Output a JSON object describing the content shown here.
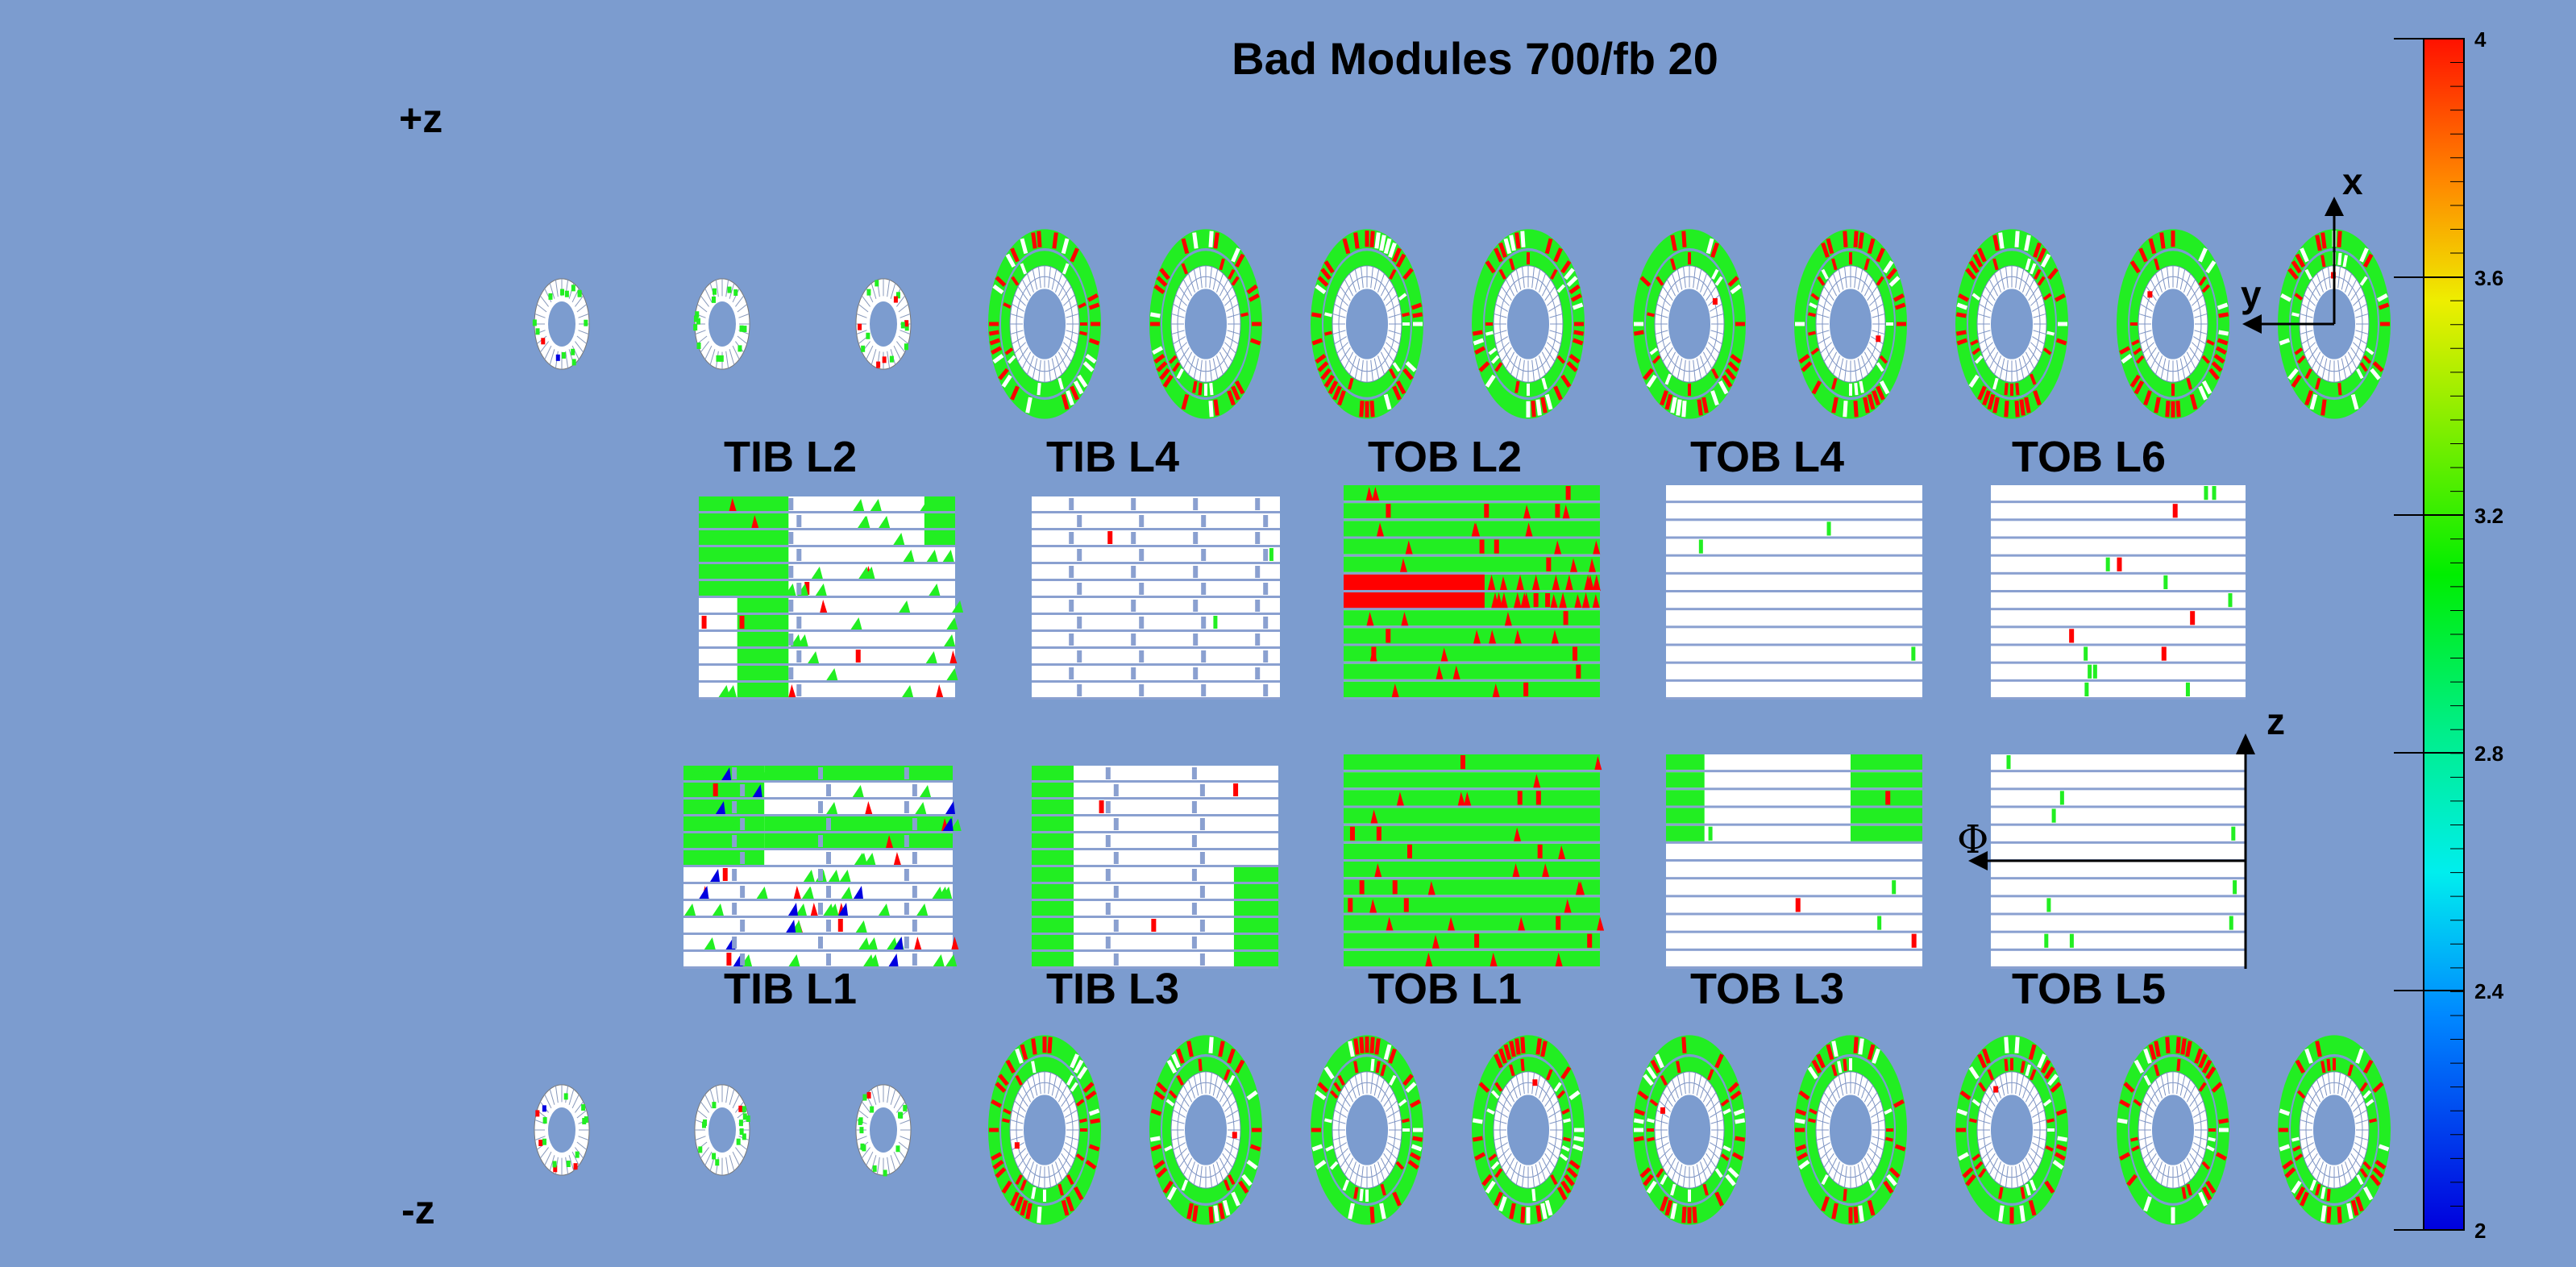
{
  "chart_data": {
    "type": "heatmap",
    "title": "Bad Modules 700/fb 20",
    "side_labels": {
      "plus": "+z",
      "minus": "-z"
    },
    "colorbar": {
      "min": 2,
      "max": 4,
      "ticks": [
        "4",
        "3.6",
        "3.2",
        "2.8",
        "2.4",
        "2"
      ]
    },
    "axis_labels": {
      "x": "x",
      "y": "y",
      "z": "z",
      "phi": "Φ"
    },
    "barrel_layers_top": [
      "TIB L2",
      "TIB L4",
      "TOB L2",
      "TOB L4",
      "TOB L6"
    ],
    "barrel_layers_bottom": [
      "TIB L1",
      "TIB L3",
      "TOB L1",
      "TOB L3",
      "TOB L5"
    ],
    "endcap_disks_per_side": 12,
    "grid": false,
    "colors": {
      "background": "#7c9ccf",
      "good": "#22ee22",
      "bad": "#ff0000",
      "empty": "#ffffff",
      "low": "#0000e0"
    }
  }
}
